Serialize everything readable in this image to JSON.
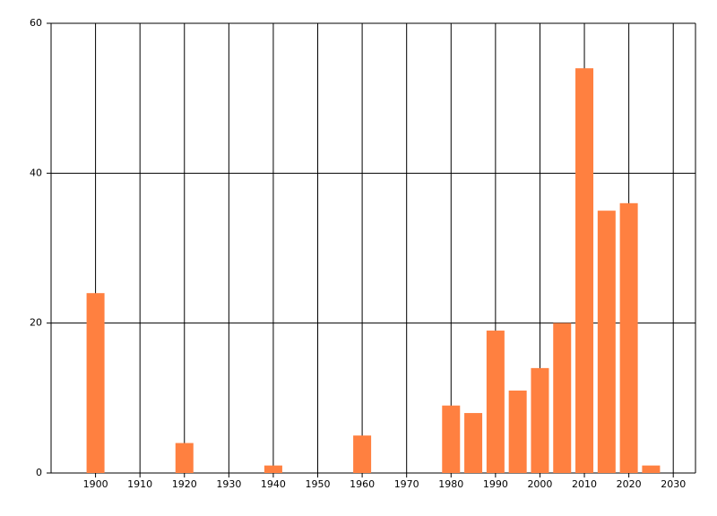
{
  "chart_data": {
    "type": "bar",
    "x": [
      1900,
      1920,
      1940,
      1960,
      1980,
      1985,
      1990,
      1995,
      2000,
      2005,
      2010,
      2015,
      2020,
      2025
    ],
    "values": [
      24,
      4,
      1,
      5,
      9,
      8,
      19,
      11,
      14,
      20,
      54,
      35,
      36,
      1
    ],
    "color": "#ff8040",
    "xlim": [
      1890,
      2035
    ],
    "xticks": [
      1900,
      1910,
      1920,
      1930,
      1940,
      1950,
      1960,
      1970,
      1980,
      1990,
      2000,
      2010,
      2020,
      2030
    ],
    "ylim": [
      0,
      60
    ],
    "yticks": [
      0,
      20,
      40,
      60
    ],
    "grid": true
  }
}
